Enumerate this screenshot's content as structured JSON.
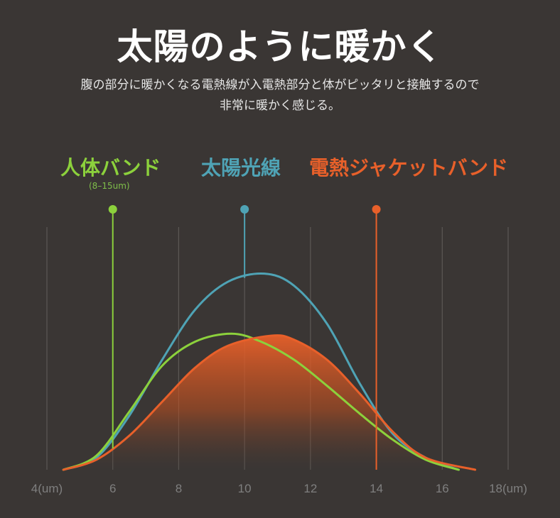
{
  "header": {
    "title": "太陽のように暖かく",
    "subtitle_line1": "腹の部分に暖かくなる電熱線が入電熱部分と体がピッタリと接触するので",
    "subtitle_line2": "非常に暖かく感じる。"
  },
  "legend": {
    "human": {
      "label": "人体バンド",
      "sub": "(8–15um)",
      "color": "#8cd13c"
    },
    "sun": {
      "label": "太陽光線",
      "color": "#4fa3b5"
    },
    "jacket": {
      "label": "電熱ジャケットバンド",
      "color": "#e8602a"
    }
  },
  "chart_data": {
    "type": "line",
    "title": "",
    "xlabel": "",
    "ylabel": "",
    "xlim": [
      4,
      18
    ],
    "ylim": [
      0,
      1
    ],
    "x_ticks": [
      "4(um)",
      "6",
      "8",
      "10",
      "12",
      "14",
      "16",
      "18(um)"
    ],
    "x_tick_values": [
      4,
      6,
      8,
      10,
      12,
      14,
      16,
      18
    ],
    "grid_vertical": true,
    "series": [
      {
        "name": "太陽光線",
        "color": "#4fa3b5",
        "marker_x": 10,
        "points": [
          [
            4.5,
            0.0
          ],
          [
            5.5,
            0.06
          ],
          [
            6.5,
            0.27
          ],
          [
            7.5,
            0.55
          ],
          [
            8.5,
            0.8
          ],
          [
            9.5,
            0.94
          ],
          [
            10.6,
            0.98
          ],
          [
            11.5,
            0.92
          ],
          [
            12.5,
            0.73
          ],
          [
            13.5,
            0.43
          ],
          [
            14.5,
            0.18
          ],
          [
            15.5,
            0.06
          ],
          [
            16.5,
            0.0
          ]
        ]
      },
      {
        "name": "人体バンド",
        "color": "#8cd13c",
        "marker_x": 6,
        "points": [
          [
            4.5,
            0.0
          ],
          [
            5.5,
            0.07
          ],
          [
            6.5,
            0.29
          ],
          [
            7.5,
            0.52
          ],
          [
            8.5,
            0.64
          ],
          [
            9.6,
            0.68
          ],
          [
            10.5,
            0.64
          ],
          [
            11.5,
            0.55
          ],
          [
            12.5,
            0.42
          ],
          [
            13.5,
            0.28
          ],
          [
            14.5,
            0.15
          ],
          [
            15.5,
            0.05
          ],
          [
            16.5,
            0.0
          ]
        ]
      },
      {
        "name": "電熱ジャケットバンド",
        "color": "#e8602a",
        "marker_x": 14,
        "filled": true,
        "points": [
          [
            4.5,
            0.0
          ],
          [
            5.5,
            0.05
          ],
          [
            6.5,
            0.17
          ],
          [
            7.5,
            0.34
          ],
          [
            8.5,
            0.51
          ],
          [
            9.5,
            0.62
          ],
          [
            10.8,
            0.67
          ],
          [
            11.5,
            0.65
          ],
          [
            12.5,
            0.55
          ],
          [
            13.5,
            0.38
          ],
          [
            14.5,
            0.19
          ],
          [
            15.5,
            0.06
          ],
          [
            17.0,
            0.0
          ]
        ]
      }
    ]
  }
}
